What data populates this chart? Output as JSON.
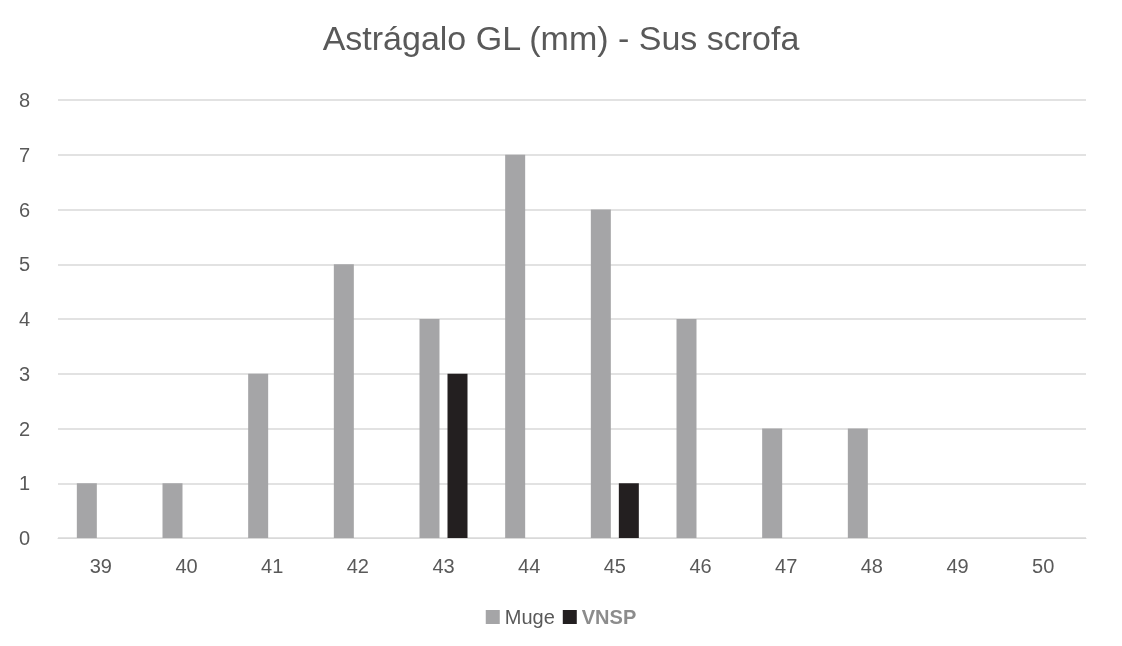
{
  "chart_data": {
    "type": "bar",
    "title": "Astrágalo GL (mm) - Sus scrofa",
    "categories": [
      "39",
      "40",
      "41",
      "42",
      "43",
      "44",
      "45",
      "46",
      "47",
      "48",
      "49",
      "50"
    ],
    "series": [
      {
        "name": "Muge",
        "color": "#a5a5a7",
        "values": [
          1,
          1,
          3,
          5,
          4,
          7,
          6,
          4,
          2,
          2,
          0,
          0
        ]
      },
      {
        "name": "VNSP",
        "color": "#231f20",
        "values": [
          0,
          0,
          0,
          0,
          3,
          0,
          1,
          0,
          0,
          0,
          0,
          0
        ]
      }
    ],
    "ylim": [
      0,
      8
    ],
    "yticks": [
      0,
      1,
      2,
      3,
      4,
      5,
      6,
      7,
      8
    ],
    "grid": "y",
    "legend": "bottom"
  }
}
